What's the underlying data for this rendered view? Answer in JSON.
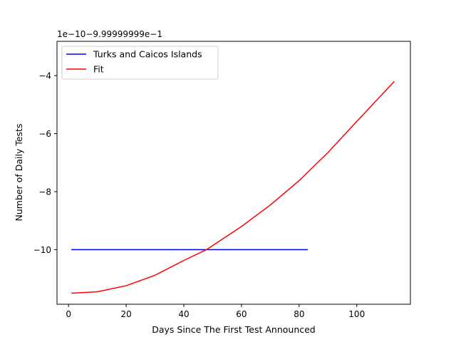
{
  "chart_data": {
    "type": "line",
    "title": "",
    "xlabel": "Days Since The First Test Announced",
    "ylabel": "Number of Daily Tests",
    "offset_text": "1e−10−9.99999999e−1",
    "xlim": [
      -4,
      118.6
    ],
    "ylim": [
      -11.88,
      -2.82
    ],
    "x_ticks": [
      0,
      20,
      40,
      60,
      80,
      100
    ],
    "x_tick_labels": [
      "0",
      "20",
      "40",
      "60",
      "80",
      "100"
    ],
    "y_ticks": [
      -10,
      -8,
      -6,
      -4
    ],
    "y_tick_labels": [
      "−10",
      "−8",
      "−6",
      "−4"
    ],
    "grid": false,
    "legend": {
      "position": "upper left"
    },
    "series": [
      {
        "name": "Turks and Caicos Islands",
        "color": "#0000ff",
        "x": [
          1,
          83
        ],
        "y": [
          -10.0,
          -10.0
        ]
      },
      {
        "name": "Fit",
        "color": "#ff0000",
        "x": [
          1,
          10,
          20,
          30,
          40,
          48,
          60,
          70,
          80,
          90,
          100,
          113
        ],
        "y": [
          -11.5,
          -11.45,
          -11.24,
          -10.88,
          -10.37,
          -9.99,
          -9.2,
          -8.46,
          -7.62,
          -6.65,
          -5.58,
          -4.2
        ]
      }
    ]
  }
}
